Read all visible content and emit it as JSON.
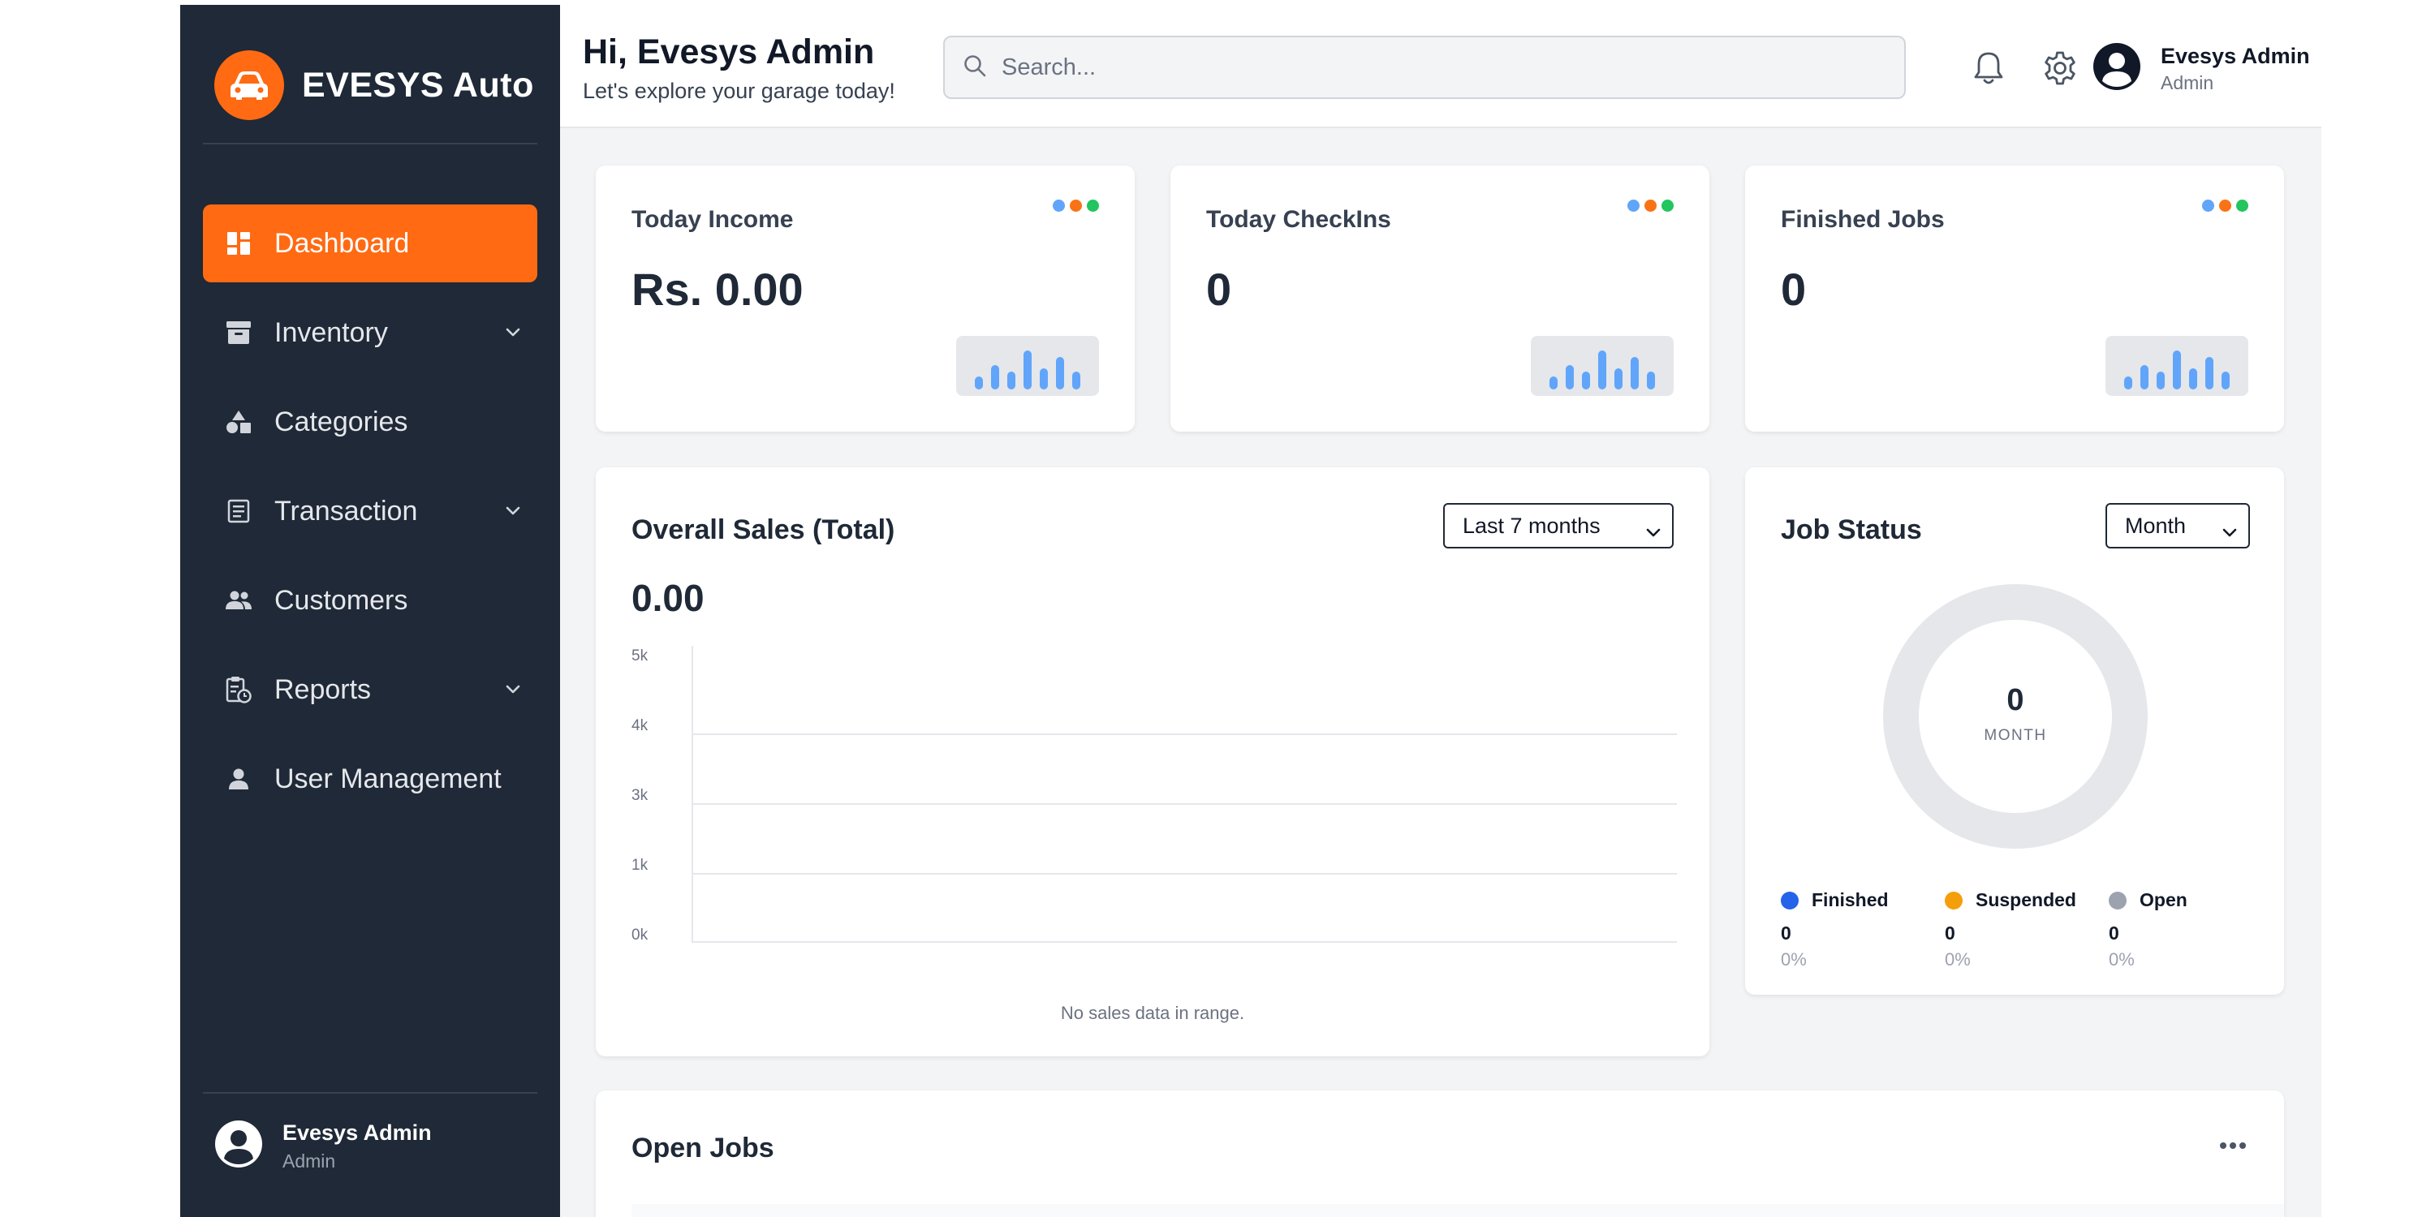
{
  "brand": {
    "name": "EVESYS Auto",
    "logo_icon": "car-icon",
    "accent": "#ff6a13"
  },
  "sidebar": {
    "items": [
      {
        "label": "Dashboard",
        "icon": "dashboard-icon",
        "active": true,
        "has_chevron": false
      },
      {
        "label": "Inventory",
        "icon": "archive-box-icon",
        "active": false,
        "has_chevron": true
      },
      {
        "label": "Categories",
        "icon": "shapes-icon",
        "active": false,
        "has_chevron": false
      },
      {
        "label": "Transaction",
        "icon": "receipt-icon",
        "active": false,
        "has_chevron": true
      },
      {
        "label": "Customers",
        "icon": "people-icon",
        "active": false,
        "has_chevron": false
      },
      {
        "label": "Reports",
        "icon": "clipboard-clock-icon",
        "active": false,
        "has_chevron": true
      },
      {
        "label": "User Management",
        "icon": "person-icon",
        "active": false,
        "has_chevron": false
      }
    ],
    "user": {
      "name": "Evesys Admin",
      "role": "Admin"
    }
  },
  "header": {
    "greeting": "Hi, Evesys Admin",
    "subtitle": "Let's explore your garage today!",
    "search_placeholder": "Search...",
    "user": {
      "name": "Evesys Admin",
      "role": "Admin"
    }
  },
  "stats": [
    {
      "title": "Today Income",
      "value": "Rs. 0.00"
    },
    {
      "title": "Today CheckIns",
      "value": "0"
    },
    {
      "title": "Finished Jobs",
      "value": "0"
    }
  ],
  "dot_colors": [
    "#60a5fa",
    "#f97316",
    "#22c55e"
  ],
  "sales": {
    "title": "Overall Sales (Total)",
    "range": "Last 7 months",
    "total": "0.00",
    "empty_message": "No sales data in range."
  },
  "chart_data": {
    "type": "line",
    "yticks": [
      "5k",
      "4k",
      "3k",
      "1k",
      "0k"
    ],
    "series": [],
    "grid": true
  },
  "job_status": {
    "title": "Job Status",
    "period": "Month",
    "center_value": "0",
    "center_label": "MONTH",
    "legend": [
      {
        "name": "Finished",
        "color": "#2563eb",
        "count": "0",
        "pct": "0%"
      },
      {
        "name": "Suspended",
        "color": "#f59e0b",
        "count": "0",
        "pct": "0%"
      },
      {
        "name": "Open",
        "color": "#9ca3af",
        "count": "0",
        "pct": "0%"
      }
    ]
  },
  "open_jobs": {
    "title": "Open Jobs"
  }
}
